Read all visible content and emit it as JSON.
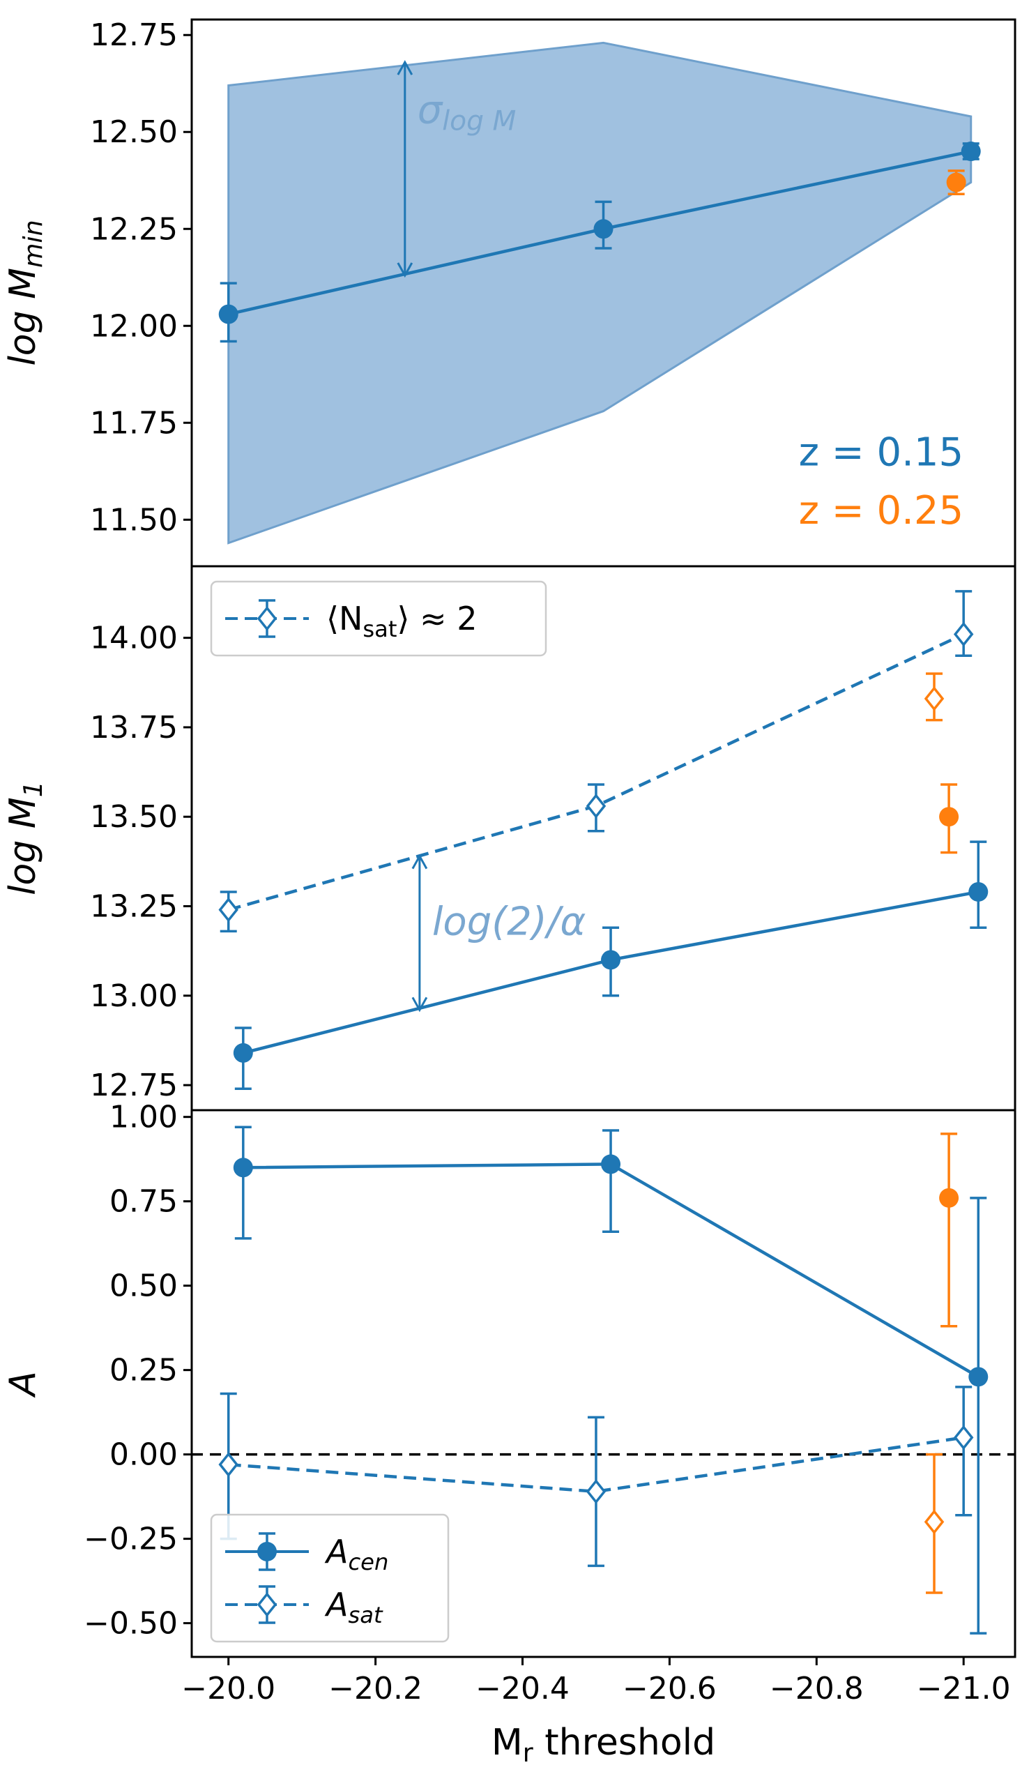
{
  "colors": {
    "blue": "#1f77b4",
    "orange": "#ff7f0e",
    "band_fill": "#8fb6da",
    "band_edge": "#6fa0cc",
    "annotation_text": "#7aa7d0"
  },
  "chart_data": [
    {
      "type": "line",
      "ylabel": "log M",
      "ylabel_sub": "min",
      "xlim": [
        -19.95,
        -21.07
      ],
      "ylim": [
        11.38,
        12.79
      ],
      "yticks": [
        11.5,
        11.75,
        12.0,
        12.25,
        12.5,
        12.75
      ],
      "ytick_labels": [
        "11.50",
        "11.75",
        "12.00",
        "12.25",
        "12.50",
        "12.75"
      ],
      "band": {
        "x": [
          -20.0,
          -20.51,
          -21.01
        ],
        "upper": [
          12.62,
          12.73,
          12.54
        ],
        "lower": [
          11.44,
          11.78,
          12.37
        ]
      },
      "series": [
        {
          "color": "blue",
          "linestyle": "solid",
          "marker": "circle",
          "x": [
            -20.0,
            -20.51,
            -21.01
          ],
          "y": [
            12.03,
            12.25,
            12.45
          ],
          "err_lo": [
            0.07,
            0.05,
            0.02
          ],
          "err_hi": [
            0.08,
            0.07,
            0.02
          ]
        },
        {
          "color": "orange",
          "linestyle": "none",
          "marker": "circle",
          "x": [
            -20.99
          ],
          "y": [
            12.37
          ],
          "err_lo": [
            0.03
          ],
          "err_hi": [
            0.03
          ]
        }
      ],
      "arrow": {
        "x": -20.24,
        "y0": 12.13,
        "y1": 12.68,
        "label": "σ",
        "label_sub": "log M"
      },
      "texts": [
        {
          "text": "z = 0.15",
          "color": "blue",
          "x": -21.0,
          "y": 11.64
        },
        {
          "text": "z = 0.25",
          "color": "orange",
          "x": -21.0,
          "y": 11.49
        }
      ]
    },
    {
      "type": "line",
      "ylabel": "log M",
      "ylabel_sub": "1",
      "xlim": [
        -19.95,
        -21.07
      ],
      "ylim": [
        12.68,
        14.2
      ],
      "yticks": [
        12.75,
        13.0,
        13.25,
        13.5,
        13.75,
        14.0
      ],
      "ytick_labels": [
        "12.75",
        "13.00",
        "13.25",
        "13.50",
        "13.75",
        "14.00"
      ],
      "series": [
        {
          "name": "⟨N_sat⟩ ≈ 2",
          "color": "blue",
          "linestyle": "dashed",
          "marker": "diamond-open",
          "x": [
            -20.0,
            -20.5,
            -21.0
          ],
          "y": [
            13.24,
            13.53,
            14.01
          ],
          "err_lo": [
            0.06,
            0.07,
            0.06
          ],
          "err_hi": [
            0.05,
            0.06,
            0.12
          ]
        },
        {
          "color": "blue",
          "linestyle": "solid",
          "marker": "circle",
          "x": [
            -20.02,
            -20.52,
            -21.02
          ],
          "y": [
            12.84,
            13.1,
            13.29
          ],
          "err_lo": [
            0.1,
            0.1,
            0.1
          ],
          "err_hi": [
            0.07,
            0.09,
            0.14
          ]
        },
        {
          "color": "orange",
          "linestyle": "none",
          "marker": "diamond-open",
          "x": [
            -20.96
          ],
          "y": [
            13.83
          ],
          "err_lo": [
            0.06
          ],
          "err_hi": [
            0.07
          ]
        },
        {
          "color": "orange",
          "linestyle": "none",
          "marker": "circle",
          "x": [
            -20.98
          ],
          "y": [
            13.5
          ],
          "err_lo": [
            0.1
          ],
          "err_hi": [
            0.09
          ]
        }
      ],
      "arrow": {
        "x": -20.26,
        "y0": 12.96,
        "y1": 13.39,
        "label": "log(2)/α"
      },
      "legend": {
        "loc": "upper-left",
        "entries": [
          {
            "label": "⟨N",
            "label_sub": "sat",
            "label_tail": "⟩ ≈ 2",
            "linestyle": "dashed",
            "marker": "diamond-open"
          }
        ]
      }
    },
    {
      "type": "line",
      "xlabel": "M",
      "xlabel_sub": "r",
      "xlabel_tail": " threshold",
      "ylabel": "A",
      "xlim": [
        -19.95,
        -21.07
      ],
      "ylim": [
        -0.6,
        1.02
      ],
      "xticks": [
        -20.0,
        -20.2,
        -20.4,
        -20.6,
        -20.8,
        -21.0
      ],
      "xtick_labels": [
        "−20.0",
        "−20.2",
        "−20.4",
        "−20.6",
        "−20.8",
        "−21.0"
      ],
      "yticks": [
        -0.5,
        -0.25,
        0.0,
        0.25,
        0.5,
        0.75,
        1.0
      ],
      "ytick_labels": [
        "−0.50",
        "−0.25",
        "0.00",
        "0.25",
        "0.50",
        "0.75",
        "1.00"
      ],
      "hline": 0.0,
      "series": [
        {
          "name": "A_cen",
          "color": "blue",
          "linestyle": "solid",
          "marker": "circle",
          "x": [
            -20.02,
            -20.52,
            -21.02
          ],
          "y": [
            0.85,
            0.86,
            0.23
          ],
          "err_lo": [
            0.21,
            0.2,
            0.76
          ],
          "err_hi": [
            0.12,
            0.1,
            0.53
          ]
        },
        {
          "name": "A_sat",
          "color": "blue",
          "linestyle": "dashed",
          "marker": "diamond-open",
          "x": [
            -20.0,
            -20.5,
            -21.0
          ],
          "y": [
            -0.03,
            -0.11,
            0.05
          ],
          "err_lo": [
            0.22,
            0.22,
            0.23
          ],
          "err_hi": [
            0.21,
            0.22,
            0.15
          ]
        },
        {
          "color": "orange",
          "linestyle": "none",
          "marker": "circle",
          "x": [
            -20.98
          ],
          "y": [
            0.76
          ],
          "err_lo": [
            0.38
          ],
          "err_hi": [
            0.19
          ]
        },
        {
          "color": "orange",
          "linestyle": "none",
          "marker": "diamond-open",
          "x": [
            -20.96
          ],
          "y": [
            -0.2
          ],
          "err_lo": [
            0.21
          ],
          "err_hi": [
            0.2
          ]
        }
      ],
      "legend": {
        "loc": "lower-left",
        "entries": [
          {
            "label": "A",
            "label_sub": "cen",
            "linestyle": "solid",
            "marker": "circle"
          },
          {
            "label": "A",
            "label_sub": "sat",
            "linestyle": "dashed",
            "marker": "diamond-open"
          }
        ]
      }
    }
  ]
}
